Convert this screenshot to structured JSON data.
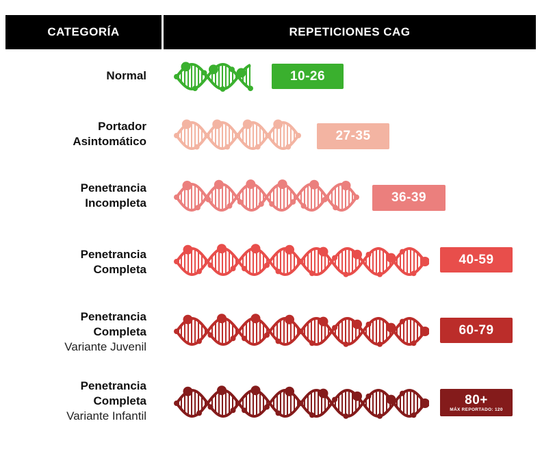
{
  "header": {
    "category": "CATEGORÍA",
    "repeats": "REPETICIONES CAG"
  },
  "rows": [
    {
      "labels": [
        "Normal"
      ],
      "variant": "",
      "range": "10-26",
      "note": "",
      "color": "#3ab02e",
      "turns": 1.2
    },
    {
      "labels": [
        "Portador",
        "Asintomático"
      ],
      "variant": "",
      "range": "27-35",
      "note": "",
      "color": "#f3b4a2",
      "turns": 2
    },
    {
      "labels": [
        "Penetrancia",
        "Incompleta"
      ],
      "variant": "",
      "range": "36-39",
      "note": "",
      "color": "#eb7f7d",
      "turns": 3
    },
    {
      "labels": [
        "Penetrancia",
        "Completa"
      ],
      "variant": "",
      "range": "40-59",
      "note": "",
      "color": "#e84e4b",
      "turns": 4
    },
    {
      "labels": [
        "Penetrancia",
        "Completa"
      ],
      "variant": "Variante Juvenil",
      "range": "60-79",
      "note": "",
      "color": "#bb2d2a",
      "turns": 4
    },
    {
      "labels": [
        "Penetrancia",
        "Completa"
      ],
      "variant": "Variante Infantil",
      "range": "80+",
      "note": "MÁX REPORTADO: 120",
      "color": "#841b1b",
      "turns": 4
    }
  ]
}
